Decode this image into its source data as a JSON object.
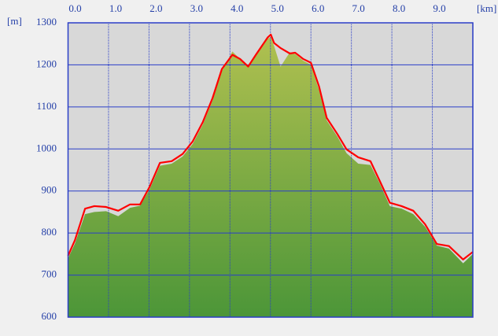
{
  "chart_data": {
    "type": "area-line",
    "x_unit": "[km]",
    "y_unit": "[m]",
    "x": [
      0,
      0.17,
      0.42,
      0.65,
      0.94,
      1.24,
      1.53,
      1.78,
      2.01,
      2.27,
      2.56,
      2.83,
      3.08,
      3.33,
      3.57,
      3.8,
      4.06,
      4.25,
      4.45,
      4.64,
      4.93,
      5.01,
      5.09,
      5.25,
      5.48,
      5.61,
      5.81,
      6.0,
      6.2,
      6.39,
      6.65,
      6.88,
      7.17,
      7.47,
      7.7,
      7.95,
      8.24,
      8.53,
      8.82,
      9.11,
      9.41,
      9.76,
      10.0
    ],
    "series": [
      {
        "color": "#8aad45",
        "values": [
          740,
          775,
          845,
          850,
          852,
          840,
          860,
          865,
          903,
          960,
          965,
          982,
          1012,
          1058,
          1115,
          1185,
          1232,
          1214,
          1196,
          1226,
          1262,
          1266,
          1245,
          1196,
          1230,
          1226,
          1210,
          1200,
          1140,
          1068,
          1030,
          990,
          965,
          962,
          918,
          864,
          858,
          845,
          815,
          770,
          763,
          728,
          750
        ]
      },
      {
        "color": "#ff0000",
        "values": [
          746,
          783,
          858,
          864,
          862,
          853,
          868,
          868,
          909,
          967,
          971,
          988,
          1018,
          1064,
          1121,
          1190,
          1224,
          1214,
          1196,
          1224,
          1265,
          1272,
          1252,
          1240,
          1227,
          1229,
          1214,
          1205,
          1149,
          1074,
          1036,
          999,
          980,
          971,
          924,
          872,
          864,
          853,
          821,
          774,
          769,
          737,
          755
        ]
      }
    ],
    "xlim": [
      0,
      10.0
    ],
    "ylim": [
      600,
      1300
    ],
    "xticks": [
      {
        "value": 0,
        "label": "0.0"
      },
      {
        "value": 1,
        "label": "1.0"
      },
      {
        "value": 2,
        "label": "2.0"
      },
      {
        "value": 3,
        "label": "3.0"
      },
      {
        "value": 4,
        "label": "4.0"
      },
      {
        "value": 5,
        "label": "5.0"
      },
      {
        "value": 6,
        "label": "6.0"
      },
      {
        "value": 7,
        "label": "7.0"
      },
      {
        "value": 8,
        "label": "8.0"
      },
      {
        "value": 9,
        "label": "9.0"
      }
    ],
    "yticks": [
      600,
      700,
      800,
      900,
      1000,
      1100,
      1200,
      1300
    ],
    "grid": true,
    "grid_color": "#2a3ec8"
  }
}
